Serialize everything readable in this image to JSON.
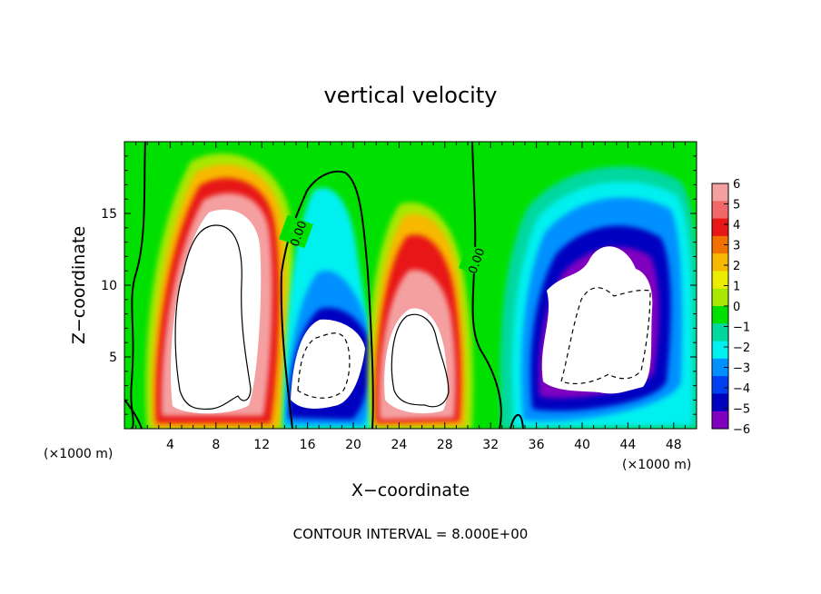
{
  "chart_data": {
    "type": "heatmap",
    "title": "vertical velocity",
    "xlabel": "X−coordinate",
    "ylabel": "Z−coordinate",
    "x_unit_left": "(×1000 m)",
    "x_unit_right": "(×1000 m)",
    "footer": "CONTOUR INTERVAL = 8.000E+00",
    "xlim": [
      0,
      50
    ],
    "ylim": [
      0,
      20
    ],
    "x_ticks": [
      4,
      8,
      12,
      16,
      20,
      24,
      28,
      32,
      36,
      40,
      44,
      48
    ],
    "y_ticks": [
      5,
      10,
      15
    ],
    "colorbar": {
      "range": [
        -6,
        6
      ],
      "ticks": [
        "6",
        "5",
        "4",
        "3",
        "2",
        "1",
        "0",
        "−1",
        "−2",
        "−3",
        "−4",
        "−5",
        "−6"
      ],
      "colors": [
        "#f5a0a0",
        "#f06868",
        "#e81818",
        "#f07000",
        "#f8b800",
        "#ecec00",
        "#a8e800",
        "#00e000",
        "#00d8a0",
        "#00f0f0",
        "#0090ff",
        "#0040f0",
        "#0000c0",
        "#8000c0"
      ]
    },
    "contour_labels": [
      "0.00",
      "0.00"
    ],
    "cells": [
      {
        "name": "updraft-1",
        "x": 8.5,
        "z": 8.5,
        "peak": "above 6"
      },
      {
        "name": "downdraft-1",
        "x": 18,
        "z": 4.5,
        "peak": "below -6"
      },
      {
        "name": "updraft-2",
        "x": 26,
        "z": 6,
        "peak": "above 6"
      },
      {
        "name": "downdraft-2",
        "x": 42,
        "z": 7.5,
        "peak": "below -6"
      }
    ]
  }
}
